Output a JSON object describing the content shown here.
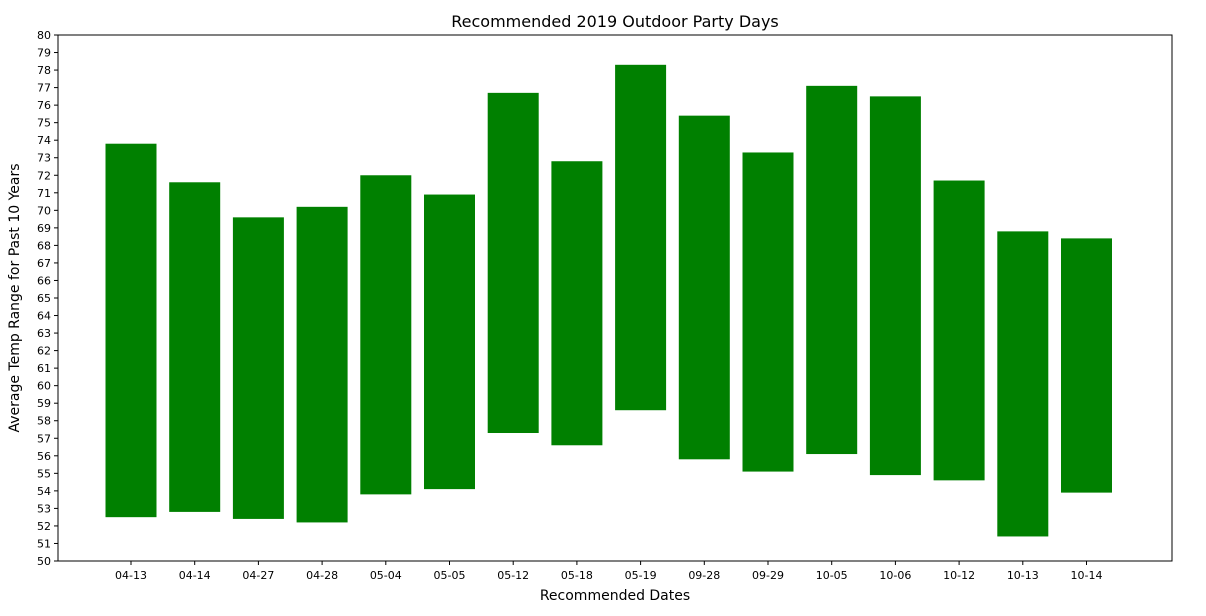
{
  "chart_data": {
    "type": "bar",
    "title": "Recommended 2019 Outdoor Party Days",
    "xlabel": "Recommended Dates",
    "ylabel": "Average Temp Range for Past 10 Years",
    "ylim": [
      50,
      80
    ],
    "ytick_step": 1,
    "bar_color": "#008000",
    "grid": false,
    "categories": [
      "04-13",
      "04-14",
      "04-27",
      "04-28",
      "05-04",
      "05-05",
      "05-12",
      "05-18",
      "05-19",
      "09-28",
      "09-29",
      "10-05",
      "10-06",
      "10-12",
      "10-13",
      "10-14"
    ],
    "series": [
      {
        "low": [
          52.5,
          52.8,
          52.4,
          52.2,
          53.8,
          54.1,
          57.3,
          56.6,
          58.6,
          55.8,
          55.1,
          56.1,
          54.9,
          54.6,
          51.4,
          53.9
        ],
        "high": [
          73.8,
          71.6,
          69.6,
          70.2,
          72.0,
          70.9,
          76.7,
          72.8,
          78.3,
          75.4,
          73.3,
          77.1,
          76.5,
          71.7,
          68.8,
          68.4
        ]
      }
    ]
  }
}
